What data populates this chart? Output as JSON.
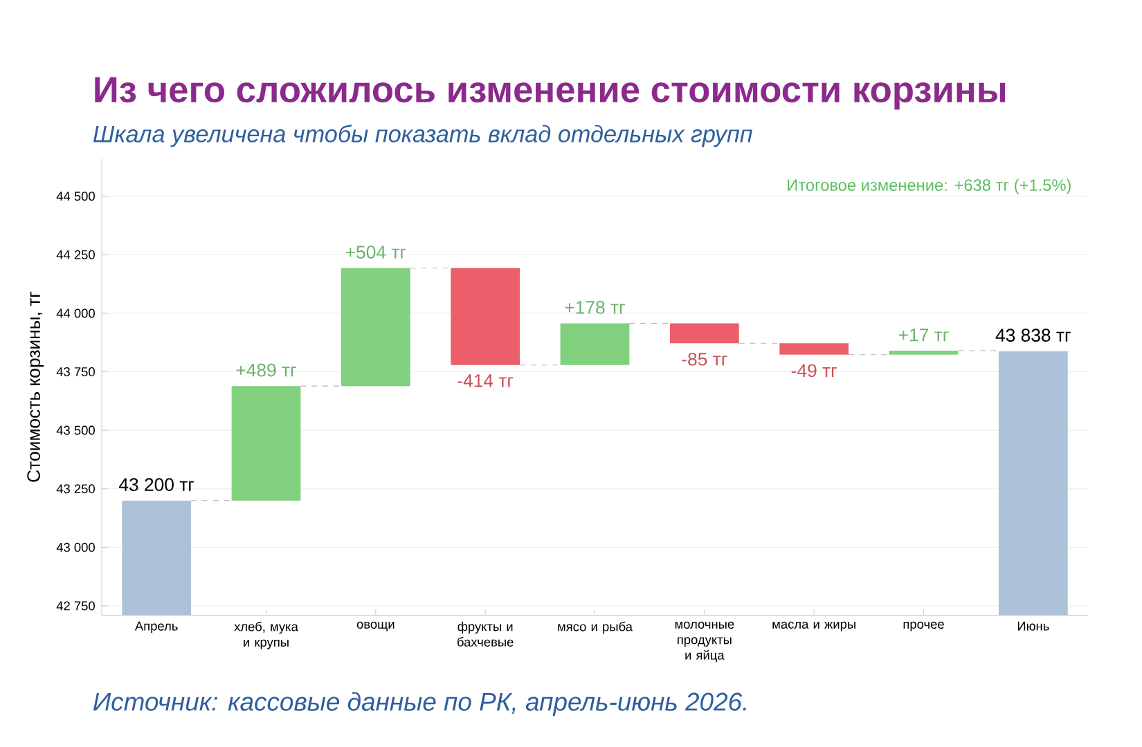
{
  "chart_data": {
    "type": "bar",
    "title": "Из чего сложилось изменение стоимости корзины",
    "subtitle": "Шкала увеличена чтобы показать вклад отдельных групп",
    "ylabel": "Стоимость корзины, тг",
    "categories": [
      "Апрель",
      "хлеб, мука и крупы",
      "овощи",
      "фрукты и бахчевые",
      "мясо и рыба",
      "молочные продукты и яйца",
      "масла и жиры",
      "прочее",
      "Июнь"
    ],
    "values": [
      43200,
      489,
      504,
      -414,
      178,
      -85,
      -49,
      17,
      43838
    ],
    "base": [
      null,
      43200,
      43689,
      44193,
      43779,
      43957,
      43872,
      43823,
      null
    ],
    "colors": [
      "#adc2d8",
      "#80d07e",
      "#80d07e",
      "#ec5f6a",
      "#80d07e",
      "#ec5f6a",
      "#ec5f6a",
      "#80d07e",
      "#adc2d8"
    ],
    "value_labels": [
      "43 200 тг",
      "+489 тг",
      "+504 тг",
      "-414 тг",
      "+178 тг",
      "-85 тг",
      "-49 тг",
      "+17 тг",
      "43 838 тг"
    ],
    "ylim": [
      42710,
      44660
    ],
    "yticks": [
      {
        "value": 42750,
        "label": "42 750"
      },
      {
        "value": 43000,
        "label": "43 000"
      },
      {
        "value": 43250,
        "label": "43 250"
      },
      {
        "value": 43500,
        "label": "43 500"
      },
      {
        "value": 43750,
        "label": "43 750"
      },
      {
        "value": 44000,
        "label": "44 000"
      },
      {
        "value": 44250,
        "label": "44 250"
      },
      {
        "value": 44500,
        "label": "44 500"
      }
    ],
    "grid": "y",
    "annotations": [
      "Итоговое изменение: +638 тг (+1.5%)",
      "Источник: кассовые данные по РК, апрель-июнь 2026."
    ]
  }
}
